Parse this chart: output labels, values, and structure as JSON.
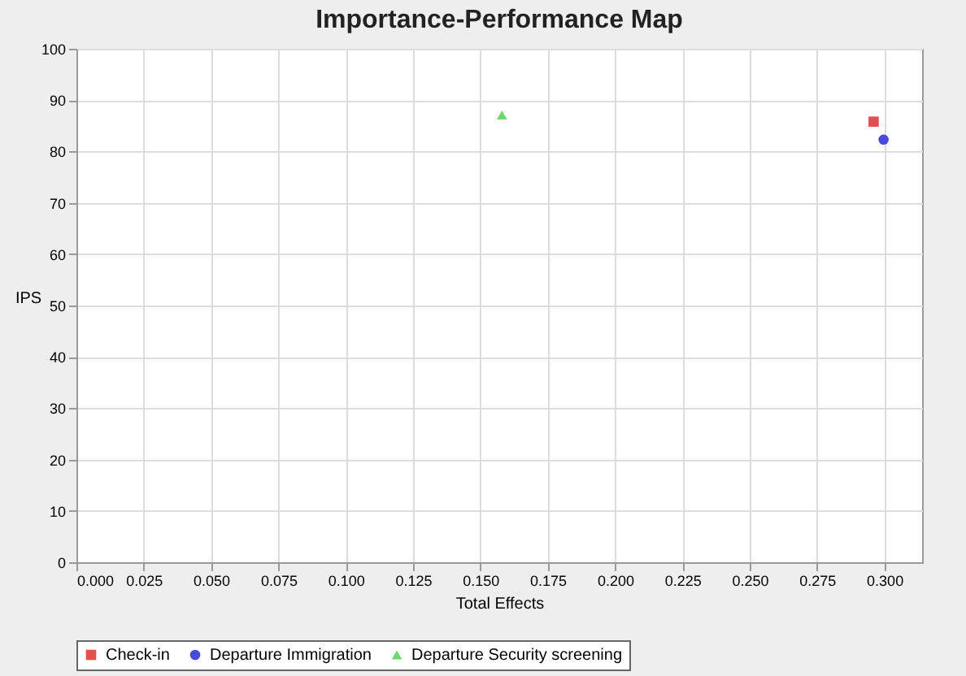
{
  "chart_data": {
    "type": "scatter",
    "title": "Importance-Performance Map",
    "xlabel": "Total Effects",
    "ylabel": "IPS",
    "xlim": [
      0,
      0.314
    ],
    "ylim": [
      0,
      100
    ],
    "xticks": [
      {
        "value": 0,
        "label": "0.000"
      },
      {
        "value": 0.025,
        "label": "0.025"
      },
      {
        "value": 0.05,
        "label": "0.050"
      },
      {
        "value": 0.075,
        "label": "0.075"
      },
      {
        "value": 0.1,
        "label": "0.100"
      },
      {
        "value": 0.125,
        "label": "0.125"
      },
      {
        "value": 0.15,
        "label": "0.150"
      },
      {
        "value": 0.175,
        "label": "0.175"
      },
      {
        "value": 0.2,
        "label": "0.200"
      },
      {
        "value": 0.225,
        "label": "0.225"
      },
      {
        "value": 0.25,
        "label": "0.250"
      },
      {
        "value": 0.275,
        "label": "0.275"
      },
      {
        "value": 0.3,
        "label": "0.300"
      }
    ],
    "yticks": [
      0,
      10,
      20,
      30,
      40,
      50,
      60,
      70,
      80,
      90,
      100
    ],
    "grid": true,
    "legend": "bottom",
    "series": [
      {
        "name": "Check-in",
        "color": "#e05050",
        "marker": "square",
        "x": [
          0.296
        ],
        "values": [
          85.8
        ]
      },
      {
        "name": "Departure Immigration",
        "color": "#4a4ad8",
        "marker": "circle",
        "x": [
          0.2997
        ],
        "values": [
          82.3
        ]
      },
      {
        "name": "Departure Security screening",
        "color": "#6fd66f",
        "marker": "triangle",
        "x": [
          0.158
        ],
        "values": [
          87.1
        ]
      }
    ]
  }
}
